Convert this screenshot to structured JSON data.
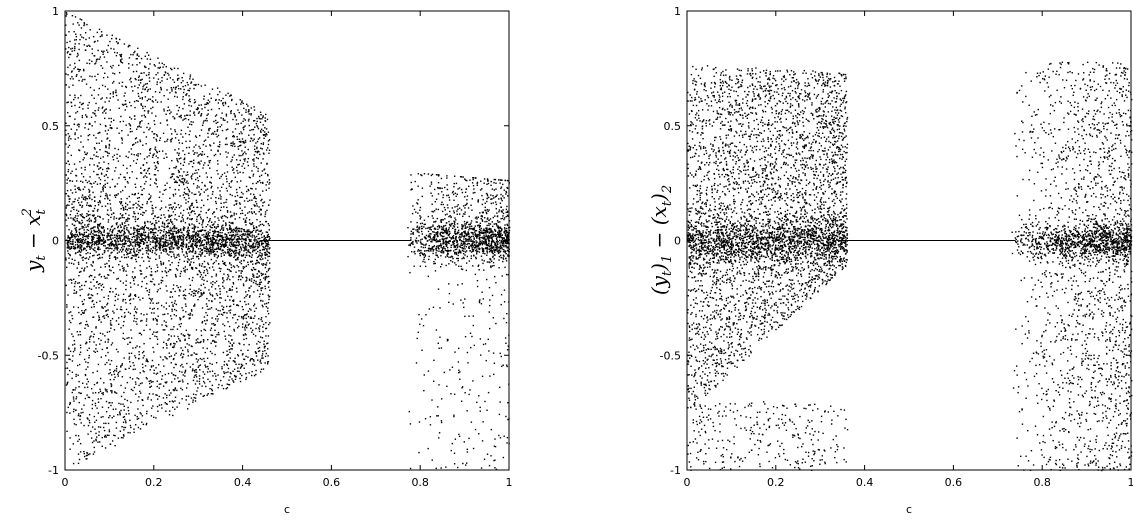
{
  "chart_data": [
    {
      "type": "scatter",
      "title": "",
      "xlabel": "c",
      "ylabel": "y_t − x_t^2",
      "ylabel_parts": [
        "y",
        "t",
        " − x",
        "t",
        "2"
      ],
      "xlim": [
        0,
        1
      ],
      "ylim": [
        -1,
        1
      ],
      "xticks": [
        "0",
        "0.2",
        "0.4",
        "0.6",
        "0.8",
        "1"
      ],
      "yticks": [
        "-1",
        "-0.5",
        "0",
        "0.5",
        "1"
      ],
      "grid": false,
      "point_color": "#000000",
      "regions": [
        {
          "x_range": [
            0.0,
            0.46
          ],
          "envelope": "upper 1 → 0.55, lower -1 → -0.55 (linear in c)",
          "density": "dense"
        },
        {
          "x_range": [
            0.46,
            0.77
          ],
          "envelope": "y = 0 (fixed point line)",
          "density": "line"
        },
        {
          "x_range": [
            0.77,
            1.0
          ],
          "envelope": "upper ≈ 0.3 → 0.26, lower sparse to -1",
          "density": "sparse, concentrated near 0"
        }
      ]
    },
    {
      "type": "scatter",
      "title": "",
      "xlabel": "c",
      "ylabel": "(y_t)_1 − (x_t)_2",
      "ylabel_parts": [
        "(y",
        "t",
        ")",
        "1",
        " − (x",
        "t",
        ")",
        "2"
      ],
      "xlim": [
        0,
        1
      ],
      "ylim": [
        -1,
        1
      ],
      "xticks": [
        "0",
        "0.2",
        "0.4",
        "0.6",
        "0.8",
        "1"
      ],
      "yticks": [
        "-1",
        "-0.5",
        "0",
        "0.5",
        "1"
      ],
      "grid": false,
      "point_color": "#000000",
      "regions": [
        {
          "x_range": [
            0.0,
            0.36
          ],
          "envelope": "upper ≈ 0.76, lower -0.75 → -0.1 (linear in c)",
          "density": "dense"
        },
        {
          "x_range": [
            0.36,
            0.73
          ],
          "envelope": "y = 0 (fixed point line)",
          "density": "line"
        },
        {
          "x_range": [
            0.73,
            1.0
          ],
          "envelope": "upper ≈ 0.78, lower -1",
          "density": "sparse, concentrated near 0"
        }
      ]
    }
  ]
}
